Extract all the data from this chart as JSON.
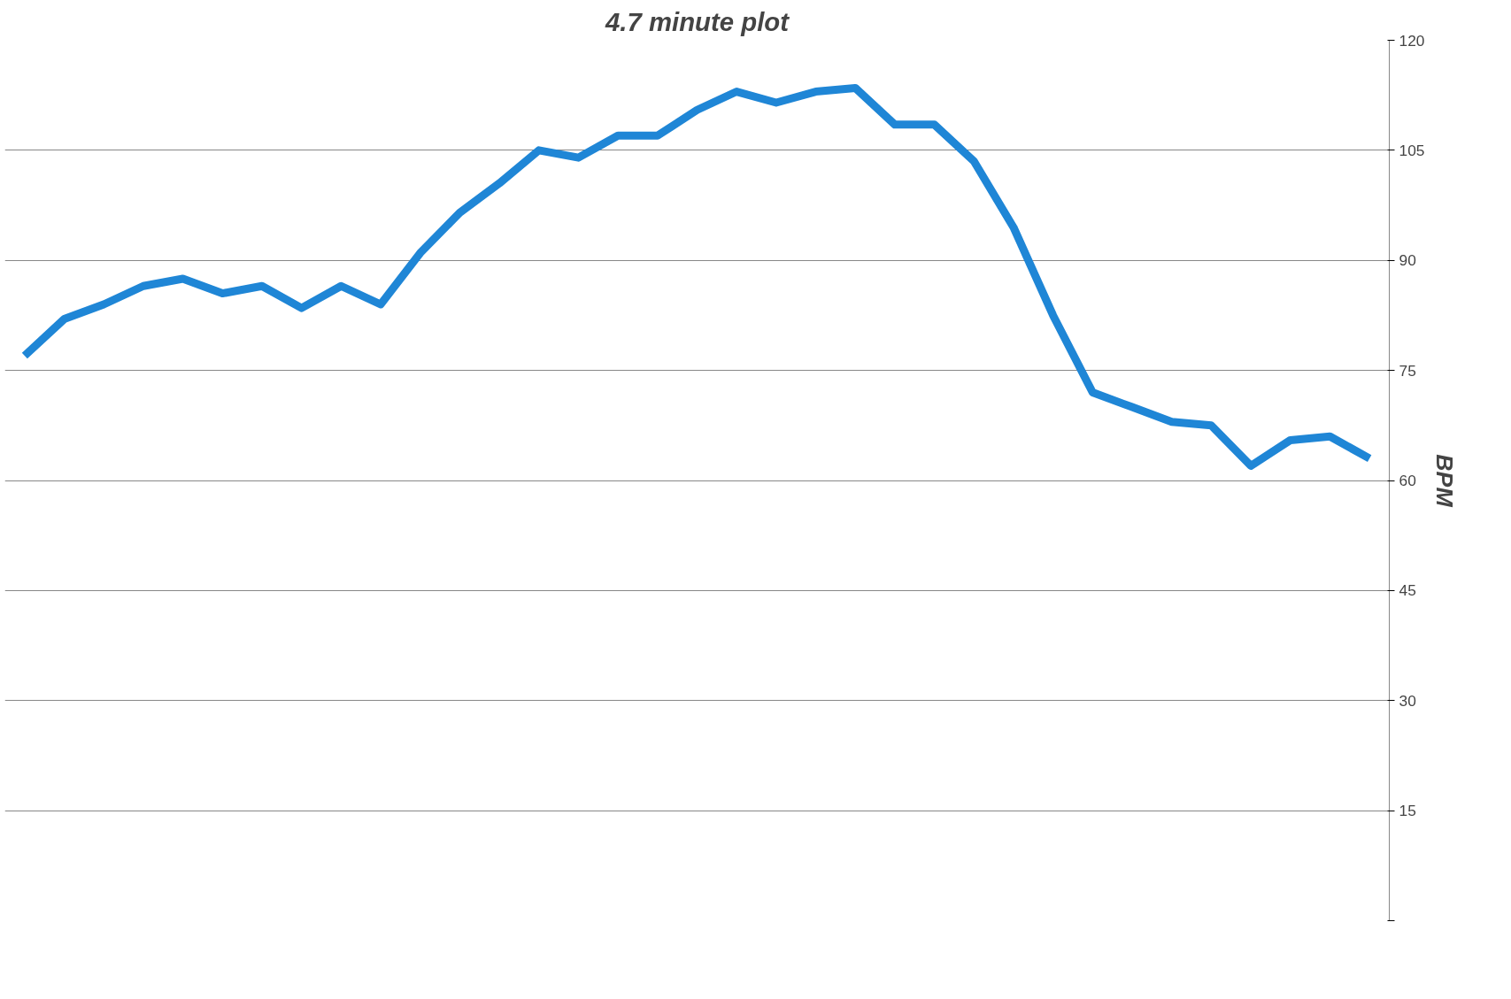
{
  "chart_data": {
    "type": "line",
    "title": "4.7 minute plot",
    "ylabel": "BPM",
    "categories": [
      null,
      null,
      null,
      null,
      null,
      null,
      null,
      null,
      null,
      null,
      null,
      null,
      null,
      null,
      null,
      null,
      null,
      null,
      null,
      null,
      null,
      null,
      null,
      null,
      null,
      null,
      null,
      null,
      null,
      null,
      null,
      null,
      null,
      null,
      null
    ],
    "series": [
      {
        "color": "#1f86d6",
        "values": [
          77,
          82,
          84,
          86.5,
          87.5,
          85.5,
          86.5,
          83.5,
          86.5,
          84,
          91,
          96.5,
          100.5,
          105,
          104,
          107,
          107,
          110.5,
          113,
          111.5,
          113,
          113.5,
          108.5,
          108.5,
          103.5,
          94.5,
          82.5,
          72,
          70,
          68,
          67.5,
          62,
          65.5,
          66,
          63
        ]
      }
    ],
    "ylim": [
      0,
      120
    ],
    "yticks": [
      {
        "value": 0,
        "label": null
      },
      15,
      30,
      45,
      60,
      75,
      90,
      105,
      120
    ],
    "grid": "y",
    "marker": "none",
    "line_style": "solid"
  }
}
